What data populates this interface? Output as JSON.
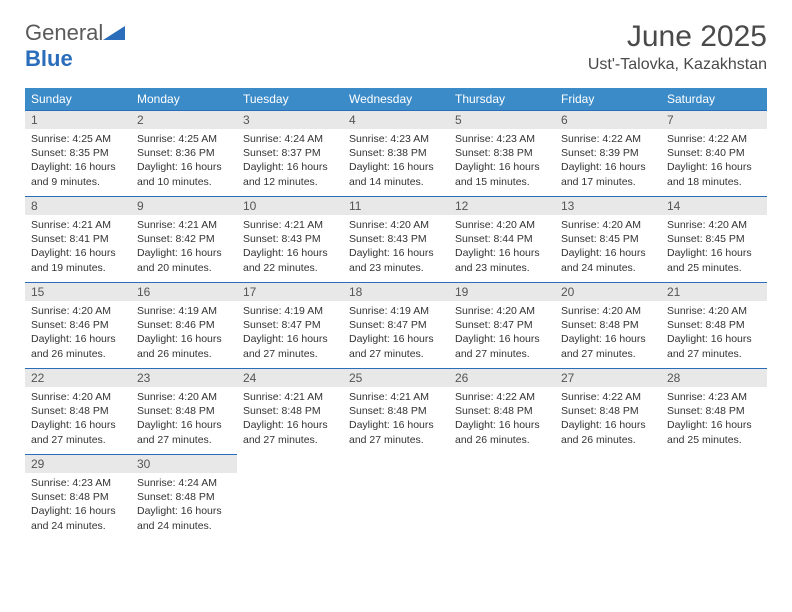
{
  "brand": {
    "part1": "General",
    "part2": "Blue"
  },
  "title": "June 2025",
  "location": "Ust'-Talovka, Kazakhstan",
  "colors": {
    "header_bg": "#3b8bc9",
    "header_text": "#ffffff",
    "border": "#2a6ebb",
    "daynum_bg": "#e8e8e8",
    "text": "#333333",
    "brand_gray": "#5a5a5a",
    "brand_blue": "#2a6ebb"
  },
  "weekdays": [
    "Sunday",
    "Monday",
    "Tuesday",
    "Wednesday",
    "Thursday",
    "Friday",
    "Saturday"
  ],
  "days": [
    {
      "n": "1",
      "sunrise": "4:25 AM",
      "sunset": "8:35 PM",
      "daylight": "16 hours and 9 minutes."
    },
    {
      "n": "2",
      "sunrise": "4:25 AM",
      "sunset": "8:36 PM",
      "daylight": "16 hours and 10 minutes."
    },
    {
      "n": "3",
      "sunrise": "4:24 AM",
      "sunset": "8:37 PM",
      "daylight": "16 hours and 12 minutes."
    },
    {
      "n": "4",
      "sunrise": "4:23 AM",
      "sunset": "8:38 PM",
      "daylight": "16 hours and 14 minutes."
    },
    {
      "n": "5",
      "sunrise": "4:23 AM",
      "sunset": "8:38 PM",
      "daylight": "16 hours and 15 minutes."
    },
    {
      "n": "6",
      "sunrise": "4:22 AM",
      "sunset": "8:39 PM",
      "daylight": "16 hours and 17 minutes."
    },
    {
      "n": "7",
      "sunrise": "4:22 AM",
      "sunset": "8:40 PM",
      "daylight": "16 hours and 18 minutes."
    },
    {
      "n": "8",
      "sunrise": "4:21 AM",
      "sunset": "8:41 PM",
      "daylight": "16 hours and 19 minutes."
    },
    {
      "n": "9",
      "sunrise": "4:21 AM",
      "sunset": "8:42 PM",
      "daylight": "16 hours and 20 minutes."
    },
    {
      "n": "10",
      "sunrise": "4:21 AM",
      "sunset": "8:43 PM",
      "daylight": "16 hours and 22 minutes."
    },
    {
      "n": "11",
      "sunrise": "4:20 AM",
      "sunset": "8:43 PM",
      "daylight": "16 hours and 23 minutes."
    },
    {
      "n": "12",
      "sunrise": "4:20 AM",
      "sunset": "8:44 PM",
      "daylight": "16 hours and 23 minutes."
    },
    {
      "n": "13",
      "sunrise": "4:20 AM",
      "sunset": "8:45 PM",
      "daylight": "16 hours and 24 minutes."
    },
    {
      "n": "14",
      "sunrise": "4:20 AM",
      "sunset": "8:45 PM",
      "daylight": "16 hours and 25 minutes."
    },
    {
      "n": "15",
      "sunrise": "4:20 AM",
      "sunset": "8:46 PM",
      "daylight": "16 hours and 26 minutes."
    },
    {
      "n": "16",
      "sunrise": "4:19 AM",
      "sunset": "8:46 PM",
      "daylight": "16 hours and 26 minutes."
    },
    {
      "n": "17",
      "sunrise": "4:19 AM",
      "sunset": "8:47 PM",
      "daylight": "16 hours and 27 minutes."
    },
    {
      "n": "18",
      "sunrise": "4:19 AM",
      "sunset": "8:47 PM",
      "daylight": "16 hours and 27 minutes."
    },
    {
      "n": "19",
      "sunrise": "4:20 AM",
      "sunset": "8:47 PM",
      "daylight": "16 hours and 27 minutes."
    },
    {
      "n": "20",
      "sunrise": "4:20 AM",
      "sunset": "8:48 PM",
      "daylight": "16 hours and 27 minutes."
    },
    {
      "n": "21",
      "sunrise": "4:20 AM",
      "sunset": "8:48 PM",
      "daylight": "16 hours and 27 minutes."
    },
    {
      "n": "22",
      "sunrise": "4:20 AM",
      "sunset": "8:48 PM",
      "daylight": "16 hours and 27 minutes."
    },
    {
      "n": "23",
      "sunrise": "4:20 AM",
      "sunset": "8:48 PM",
      "daylight": "16 hours and 27 minutes."
    },
    {
      "n": "24",
      "sunrise": "4:21 AM",
      "sunset": "8:48 PM",
      "daylight": "16 hours and 27 minutes."
    },
    {
      "n": "25",
      "sunrise": "4:21 AM",
      "sunset": "8:48 PM",
      "daylight": "16 hours and 27 minutes."
    },
    {
      "n": "26",
      "sunrise": "4:22 AM",
      "sunset": "8:48 PM",
      "daylight": "16 hours and 26 minutes."
    },
    {
      "n": "27",
      "sunrise": "4:22 AM",
      "sunset": "8:48 PM",
      "daylight": "16 hours and 26 minutes."
    },
    {
      "n": "28",
      "sunrise": "4:23 AM",
      "sunset": "8:48 PM",
      "daylight": "16 hours and 25 minutes."
    },
    {
      "n": "29",
      "sunrise": "4:23 AM",
      "sunset": "8:48 PM",
      "daylight": "16 hours and 24 minutes."
    },
    {
      "n": "30",
      "sunrise": "4:24 AM",
      "sunset": "8:48 PM",
      "daylight": "16 hours and 24 minutes."
    }
  ],
  "labels": {
    "sunrise": "Sunrise:",
    "sunset": "Sunset:",
    "daylight": "Daylight:"
  }
}
